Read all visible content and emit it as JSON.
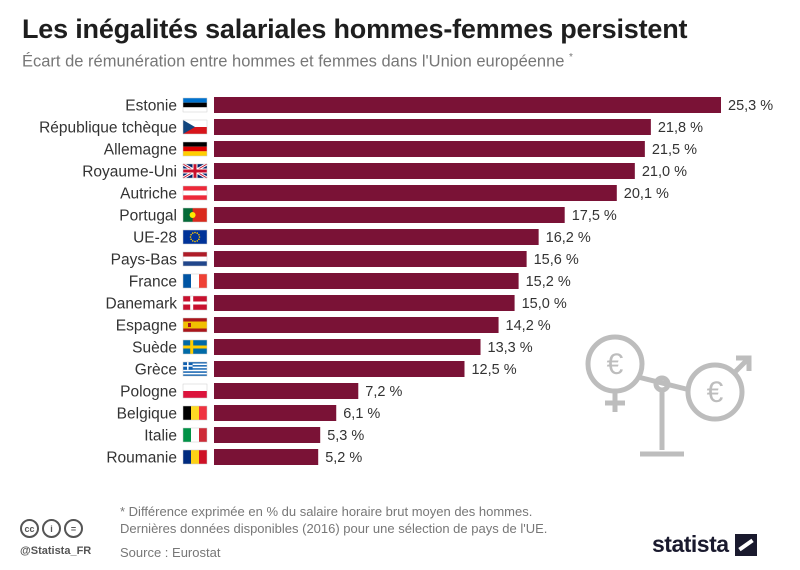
{
  "header": {
    "title": "Les inégalités salariales hommes-femmes persistent",
    "subtitle": "Écart de rémunération entre hommes et femmes dans l'Union européenne",
    "subtitle_mark": "*"
  },
  "chart_data": {
    "type": "bar",
    "orientation": "horizontal",
    "categories": [
      "Estonie",
      "République tchèque",
      "Allemagne",
      "Royaume-Uni",
      "Autriche",
      "Portugal",
      "UE-28",
      "Pays-Bas",
      "France",
      "Danemark",
      "Espagne",
      "Suède",
      "Grèce",
      "Pologne",
      "Belgique",
      "Italie",
      "Roumanie"
    ],
    "values": [
      25.3,
      21.8,
      21.5,
      21.0,
      20.1,
      17.5,
      16.2,
      15.6,
      15.2,
      15.0,
      14.2,
      13.3,
      12.5,
      7.2,
      6.1,
      5.3,
      5.2
    ],
    "value_labels": [
      "25,3 %",
      "21,8 %",
      "21,5 %",
      "21,0 %",
      "20,1 %",
      "17,5 %",
      "16,2 %",
      "15,6 %",
      "15,2 %",
      "15,0 %",
      "14,2 %",
      "13,3 %",
      "12,5 %",
      "7,2 %",
      "6,1 %",
      "5,3 %",
      "5,2 %"
    ],
    "flags": [
      "estonia-flag",
      "czech-flag",
      "germany-flag",
      "uk-flag",
      "austria-flag",
      "portugal-flag",
      "eu-flag",
      "netherlands-flag",
      "france-flag",
      "denmark-flag",
      "spain-flag",
      "sweden-flag",
      "greece-flag",
      "poland-flag",
      "belgium-flag",
      "italy-flag",
      "romania-flag"
    ],
    "xlim": [
      0,
      25.3
    ],
    "grid": false,
    "bar_color": "#7a1236"
  },
  "footer": {
    "footnote": "* Différence exprimée en % du salaire horaire brut moyen des hommes. Dernières données disponibles (2016) pour une sélection de pays de l'UE.",
    "source": "Source : Eurostat",
    "handle": "@Statista_FR",
    "logo": "statista",
    "cc_icons": [
      "cc",
      "i",
      "="
    ]
  }
}
